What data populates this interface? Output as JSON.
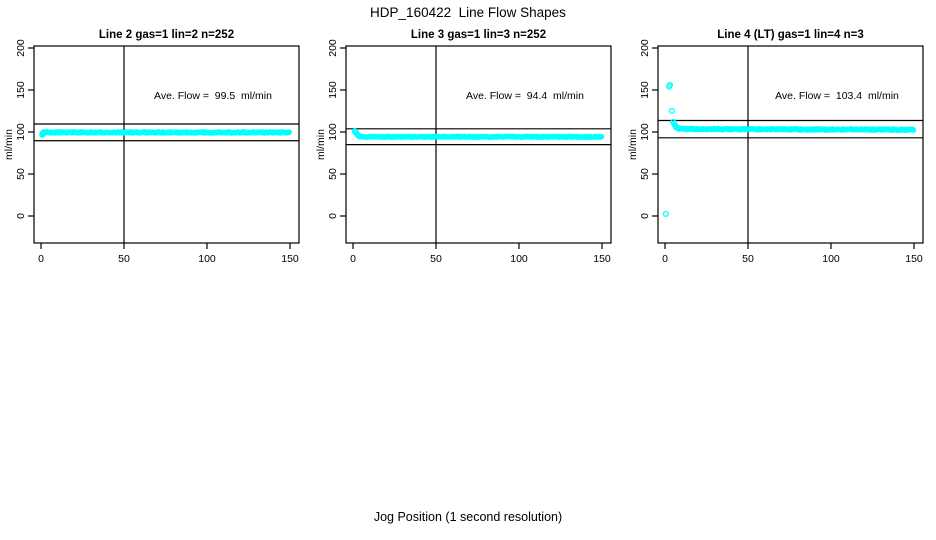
{
  "figure": {
    "title": "HDP_160422  Line Flow Shapes",
    "xlabel": "Jog Position (1 second resolution)",
    "background_color": "#ffffff",
    "text_color": "#000000",
    "layout": "1 row x 3 columns, bottom half of page blank"
  },
  "chart_data": [
    {
      "type": "scatter",
      "title": "Line 2 gas=1 lin=2 n=252",
      "annotation": "Ave. Flow =  99.5  ml/min",
      "ave_flow_ml_min": 99.5,
      "ylabel": "ml/min",
      "xticks": [
        0,
        50,
        100,
        150
      ],
      "yticks": [
        0,
        50,
        100,
        150,
        200
      ],
      "xlim": [
        0,
        150
      ],
      "ylim": [
        -32,
        202
      ],
      "grid": false,
      "legend": false,
      "vline_x": 50,
      "hlines": [
        109.5,
        89.6
      ],
      "marker": "open-circle",
      "marker_color": "#00FFFF",
      "transient_points": [
        [
          0.7,
          96.8
        ],
        [
          1.0,
          97.6
        ],
        [
          1.5,
          98.5
        ],
        [
          2.0,
          99.2
        ]
      ],
      "band": {
        "x_from": 0.8,
        "x_to": 150,
        "value": 99.5,
        "noise": 0.8,
        "slope": 0
      }
    },
    {
      "type": "scatter",
      "title": "Line 3 gas=1 lin=3 n=252",
      "annotation": "Ave. Flow =  94.4  ml/min",
      "ave_flow_ml_min": 94.4,
      "ylabel": "ml/min",
      "xticks": [
        0,
        50,
        100,
        150
      ],
      "yticks": [
        0,
        50,
        100,
        150,
        200
      ],
      "xlim": [
        0,
        150
      ],
      "ylim": [
        -32,
        202
      ],
      "grid": false,
      "legend": false,
      "vline_x": 50,
      "hlines": [
        103.8,
        85.0
      ],
      "marker": "open-circle",
      "marker_color": "#00FFFF",
      "transient_points": [
        [
          1.0,
          101.0
        ],
        [
          1.5,
          100.2
        ],
        [
          2.0,
          98.8
        ],
        [
          2.5,
          97.4
        ],
        [
          3.0,
          96.2
        ],
        [
          3.5,
          95.3
        ],
        [
          4.0,
          94.7
        ]
      ],
      "band": {
        "x_from": 4.2,
        "x_to": 150,
        "value": 94.3,
        "noise": 0.6,
        "slope": 0
      }
    },
    {
      "type": "scatter",
      "title": "Line 4 (LT) gas=1 lin=4 n=3",
      "annotation": "Ave. Flow =  103.4  ml/min",
      "ave_flow_ml_min": 103.4,
      "ylabel": "ml/min",
      "xticks": [
        0,
        50,
        100,
        150
      ],
      "yticks": [
        0,
        50,
        100,
        150,
        200
      ],
      "xlim": [
        0,
        150
      ],
      "ylim": [
        -32,
        202
      ],
      "grid": false,
      "legend": false,
      "vline_x": 50,
      "hlines": [
        113.7,
        93.1
      ],
      "marker": "open-circle",
      "marker_color": "#00FFFF",
      "transient_points": [
        [
          0.5,
          2.5
        ],
        [
          2.5,
          154.0
        ],
        [
          3.0,
          156.0
        ],
        [
          4.2,
          125.0
        ],
        [
          5.0,
          112.0
        ],
        [
          5.5,
          110.0
        ],
        [
          6.0,
          108.0
        ],
        [
          6.5,
          106.3
        ],
        [
          7.0,
          105.2
        ],
        [
          7.8,
          104.4
        ],
        [
          8.6,
          103.9
        ]
      ],
      "band": {
        "x_from": 8.5,
        "x_to": 150,
        "value": 103.6,
        "noise": 0.9,
        "slope": -0.006
      }
    }
  ]
}
